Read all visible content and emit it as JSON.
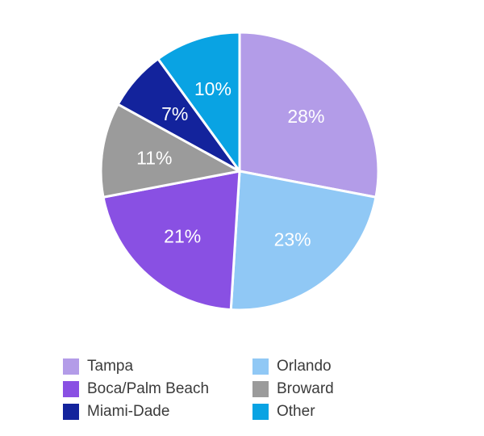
{
  "chart_data": {
    "type": "pie",
    "title": "",
    "start_angle_deg": 0,
    "direction": "clockwise",
    "slices": [
      {
        "label": "Tampa",
        "value": 28,
        "text": "28%",
        "color": "#b39ce8"
      },
      {
        "label": "Orlando",
        "value": 23,
        "text": "23%",
        "color": "#90c8f5"
      },
      {
        "label": "Boca/Palm Beach",
        "value": 21,
        "text": "21%",
        "color": "#8950e3"
      },
      {
        "label": "Broward",
        "value": 11,
        "text": "11%",
        "color": "#9b9b9b"
      },
      {
        "label": "Miami-Dade",
        "value": 7,
        "text": "7%",
        "color": "#13239c"
      },
      {
        "label": "Other",
        "value": 10,
        "text": "10%",
        "color": "#09a3e3"
      }
    ],
    "slice_border_color": "#ffffff",
    "label_color": "#ffffff",
    "label_font_size": 23,
    "legend_position": "bottom",
    "legend_columns": [
      [
        0,
        2,
        4
      ],
      [
        1,
        3,
        5
      ]
    ]
  }
}
